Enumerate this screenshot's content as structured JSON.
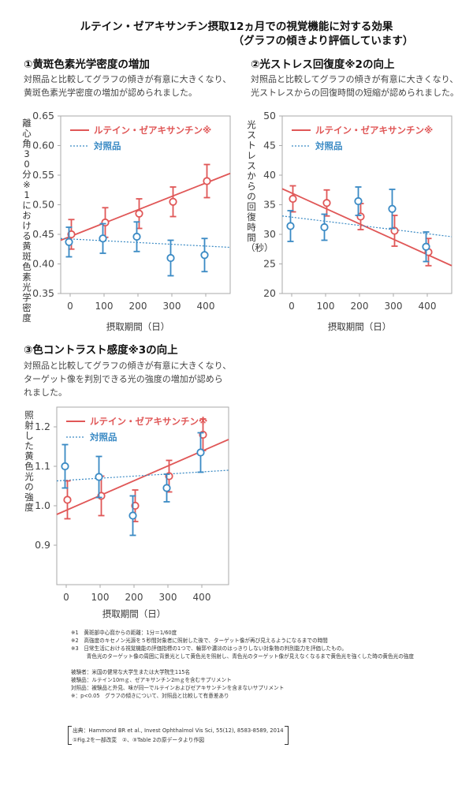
{
  "header": {
    "title_line1": "ルテイン・ゼアキサンチン摂取12ヵ月での視覚機能に対する効果",
    "title_line2": "（グラフの傾きより評価しています）"
  },
  "sections": [
    {
      "heading": "①黄斑色素光学密度の増加",
      "desc_line1": "対照品と比較してグラフの傾きが有意に大きくなり、",
      "desc_line2": "黄斑色素光学密度の増加が認められました。",
      "desc_line3": ""
    },
    {
      "heading": "②光ストレス回復度※2の向上",
      "desc_line1": "対照品と比較してグラフの傾きが有意に大きくなり、",
      "desc_line2": "光ストレスからの回復時間の短縮が認められました。",
      "desc_line3": ""
    },
    {
      "heading": "③色コントラスト感度※3の向上",
      "desc_line1": "対照品と比較してグラフの傾きが有意に大きくなり、",
      "desc_line2": "ターゲット像を判別できる光の強度の増加が認めら",
      "desc_line3": "れました。"
    }
  ],
  "colors": {
    "test": "#e05757",
    "control": "#3a8ac4",
    "frame": "#aaaaaa",
    "axis_text": "#444444"
  },
  "chart_data": [
    {
      "type": "scatter",
      "x": [
        0,
        100,
        200,
        300,
        400
      ],
      "xticks": [
        "0",
        "100",
        "200",
        "300",
        "400"
      ],
      "xlabel": "摂取期間（日）",
      "ylabel": "離心角30分※1における黄斑色素光学密度",
      "yticks": [
        "0.65",
        "0.60",
        "0.55",
        "0.50",
        "0.45",
        "0.40",
        "0.35"
      ],
      "ylim": [
        0.35,
        0.65
      ],
      "series": [
        {
          "name": "ルテイン・ゼアキサンチン※",
          "values": [
            0.45,
            0.47,
            0.485,
            0.505,
            0.54
          ],
          "err": [
            0.025,
            0.025,
            0.025,
            0.025,
            0.028
          ],
          "trend": [
            0.44,
            0.553
          ]
        },
        {
          "name": "対照品",
          "values": [
            0.437,
            0.443,
            0.446,
            0.41,
            0.415
          ],
          "err": [
            0.025,
            0.025,
            0.025,
            0.03,
            0.028
          ],
          "trend": [
            0.443,
            0.428
          ]
        }
      ]
    },
    {
      "type": "scatter",
      "x": [
        0,
        100,
        200,
        300,
        400
      ],
      "xticks": [
        "0",
        "100",
        "200",
        "300",
        "400"
      ],
      "xlabel": "摂取期間（日）",
      "ylabel": "光ストレスからの回復時間（秒）",
      "yticks": [
        "50",
        "45",
        "40",
        "35",
        "30",
        "25",
        "20"
      ],
      "ylim": [
        20,
        50
      ],
      "series": [
        {
          "name": "ルテイン・ゼアキサンチン※",
          "values": [
            36.0,
            35.3,
            33.0,
            30.6,
            27.0
          ],
          "err": [
            2.2,
            2.2,
            2.2,
            2.6,
            2.3
          ],
          "trend": [
            37.7,
            24.7
          ]
        },
        {
          "name": "対照品",
          "values": [
            31.4,
            31.2,
            35.6,
            34.3,
            27.9
          ],
          "err": [
            2.6,
            2.2,
            2.4,
            3.3,
            2.5
          ],
          "trend": [
            33.1,
            29.6
          ]
        }
      ]
    },
    {
      "type": "scatter",
      "x": [
        0,
        100,
        200,
        300,
        400
      ],
      "xticks": [
        "0",
        "100",
        "200",
        "300",
        "400"
      ],
      "xlabel": "摂取期間（日）",
      "ylabel": "照射した黄色光の強度",
      "yticks": [
        "1.2",
        "1.1",
        "1.0",
        "0.9"
      ],
      "ylim": [
        0.8,
        1.25
      ],
      "series": [
        {
          "name": "ルテイン・ゼアキサンチン※",
          "values": [
            1.015,
            1.025,
            1.0,
            1.075,
            1.18
          ],
          "err": [
            0.048,
            0.05,
            0.04,
            0.04,
            0.04
          ],
          "trend": [
            0.978,
            1.168
          ]
        },
        {
          "name": "対照品",
          "values": [
            1.1,
            1.073,
            0.975,
            1.045,
            1.135
          ],
          "err": [
            0.055,
            0.052,
            0.05,
            0.035,
            0.05
          ],
          "trend": [
            1.063,
            1.09
          ]
        }
      ]
    }
  ],
  "notes": [
    "※1　黄斑部中心窩からの距離：1分＝1/60度",
    "※2　高強度のキセノン光源を５秒間対象者に照射した後で、ターゲット像が再び見えるようになるまでの時間",
    "※3　日常生活における視覚機能の評価指標の1つで、輪郭や濃淡のはっきりしない対象物の判別能力を評価したもの。",
    "　　　青色光のターゲット像の周囲に背景光として黄色光を照射し、青色光のターゲット像が見えなくなるまで黄色光を強くした時の黄色光の強度",
    "",
    "被験者：米国の健常な大学生または大学院生115名",
    "被験品：ルテイン10ｍｇ、ゼアキサンチン2ｍｇを含むサプリメント",
    "対照品：被験品と外見、味が同一でルテインおよびゼアキサンチンを含まないサプリメント",
    "※：p<0.05　グラフの傾きについて、対照品と比較して有意差あり"
  ],
  "source": {
    "line1": "出典：Hammond BR et al., Invest Ophthalmol Vis Sci, 55(12), 8583-8589, 2014",
    "line2": "①Fig.2を一部改変　②、③Table 2の原データより作図"
  }
}
